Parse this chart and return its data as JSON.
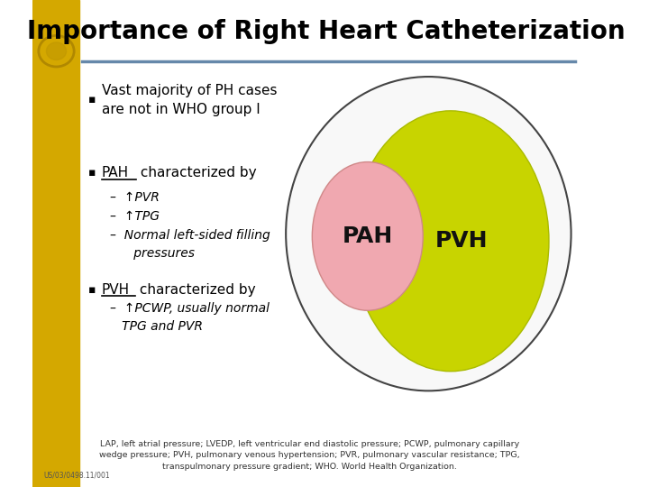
{
  "title": "Importance of Right Heart Catheterization",
  "title_fontsize": 20,
  "background_color": "#ffffff",
  "left_bg_color": "#d4a800",
  "header_line_color": "#6688aa",
  "bullet1": "Vast majority of PH cases\nare not in WHO group I",
  "bullet2_prefix": "PAH",
  "bullet2_suffix": " characterized by",
  "sub1": "–  ↑PVR",
  "sub2": "–  ↑TPG",
  "sub3": "–  Normal left-sided filling\n      pressures",
  "bullet3_prefix": "PVH",
  "bullet3_suffix": " characterized by",
  "sub4": "–  ↑PCWP, usually normal\n   TPG and PVR",
  "footer": "LAP, left atrial pressure; LVEDP, left ventricular end diastolic pressure; PCWP, pulmonary capillary\nwedge pressure; PVH, pulmonary venous hypertension; PVR, pulmonary vascular resistance; TPG,\ntranspulmonary pressure gradient; WHO. World Health Organization.",
  "pah_label": "PAH",
  "pvh_label": "PVH",
  "label_fontsize": 18,
  "text_color": "#000000",
  "slide_id": "US/03/0498.11/001"
}
